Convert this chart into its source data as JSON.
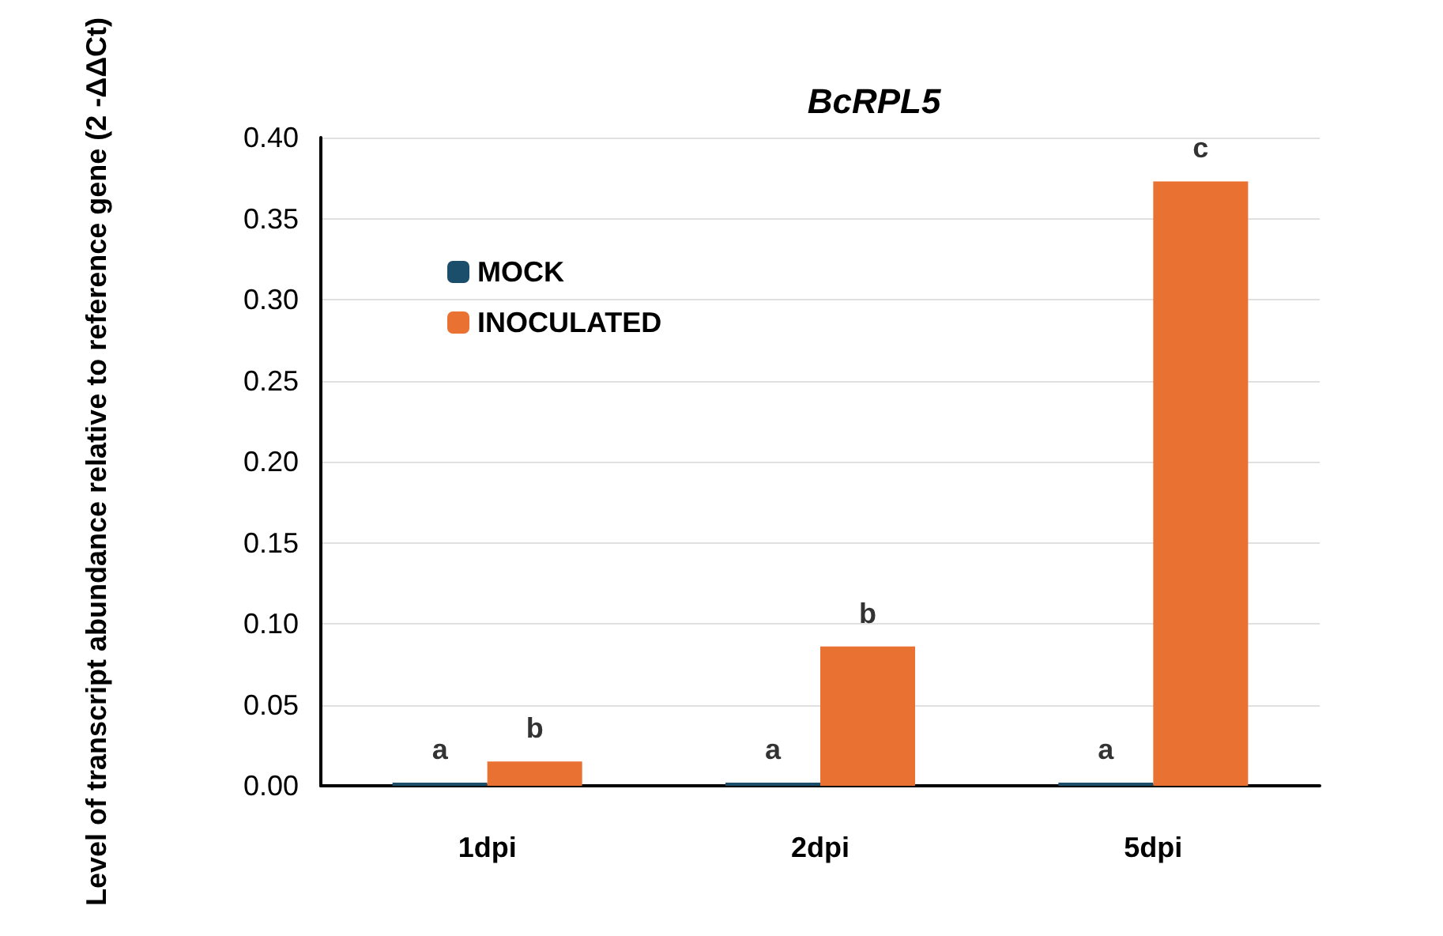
{
  "chart_data": {
    "type": "bar",
    "title": "BcRPL5",
    "ylabel": "Level of transcript abundance relative to reference gene (2 -ΔΔCt)",
    "categories": [
      "1dpi",
      "2dpi",
      "5dpi"
    ],
    "series": [
      {
        "name": "MOCK",
        "color": "#1b4e6b",
        "values": [
          0.002,
          0.002,
          0.002
        ]
      },
      {
        "name": "INOCULATED",
        "color": "#e97132",
        "values": [
          0.015,
          0.086,
          0.373
        ]
      }
    ],
    "ylim": [
      0,
      0.4
    ],
    "yticks": [
      {
        "value": 0,
        "label": "0.00"
      },
      {
        "value": 0.05,
        "label": "0.05"
      },
      {
        "value": 0.1,
        "label": "0.10"
      },
      {
        "value": 0.15,
        "label": "0.15"
      },
      {
        "value": 0.2,
        "label": "0.20"
      },
      {
        "value": 0.25,
        "label": "0.25"
      },
      {
        "value": 0.3,
        "label": "0.30"
      },
      {
        "value": 0.35,
        "label": "0.35"
      },
      {
        "value": 0.4,
        "label": "0.40"
      }
    ],
    "grid": "y",
    "legend": "top left",
    "annotations": [
      {
        "text": "a",
        "x": "1dpi",
        "y": 0.002
      },
      {
        "text": "b",
        "x": "1dpi",
        "y": 0.015
      },
      {
        "text": "a",
        "x": "2dpi",
        "y": 0.002
      },
      {
        "text": "b",
        "x": "2dpi",
        "y": 0.086
      },
      {
        "text": "a",
        "x": "5dpi",
        "y": 0.002
      },
      {
        "text": "c",
        "x": "5dpi",
        "y": 0.373
      }
    ]
  }
}
